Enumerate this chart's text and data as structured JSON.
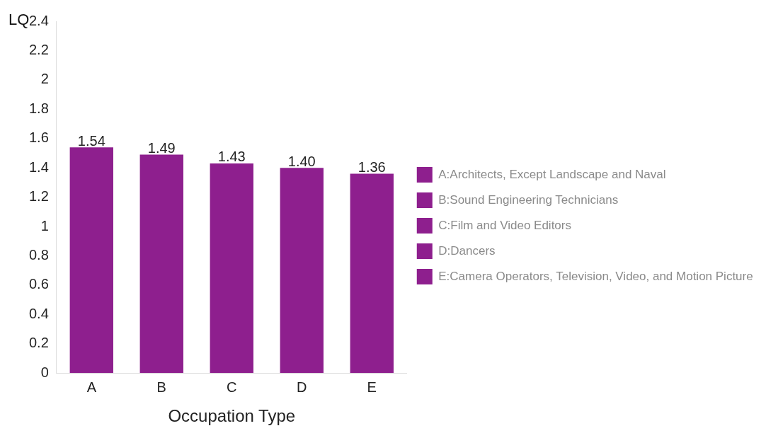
{
  "chart_data": {
    "type": "bar",
    "xlabel": "Occupation Type",
    "ylabel": "LQ",
    "categories": [
      "A",
      "B",
      "C",
      "D",
      "E"
    ],
    "series": [
      {
        "name": "A:Architects, Except Landscape and Naval",
        "color": "#8e1f8e",
        "values": [
          1.54,
          null,
          null,
          null,
          null
        ],
        "value_labels": [
          "1.54",
          null,
          null,
          null,
          null
        ]
      },
      {
        "name": "B:Sound Engineering Technicians",
        "color": "#8e1f8e",
        "values": [
          null,
          1.49,
          null,
          null,
          null
        ],
        "value_labels": [
          null,
          "1.49",
          null,
          null,
          null
        ]
      },
      {
        "name": "C:Film and Video Editors",
        "color": "#8e1f8e",
        "values": [
          null,
          null,
          1.43,
          null,
          null
        ],
        "value_labels": [
          null,
          null,
          "1.43",
          null,
          null
        ]
      },
      {
        "name": "D:Dancers",
        "color": "#8e1f8e",
        "values": [
          null,
          null,
          null,
          1.4,
          null
        ],
        "value_labels": [
          null,
          null,
          null,
          "1.40",
          null
        ]
      },
      {
        "name": "E:Camera Operators, Television, Video, and Motion Picture",
        "color": "#8e1f8e",
        "values": [
          null,
          null,
          null,
          null,
          1.36
        ],
        "value_labels": [
          null,
          null,
          null,
          null,
          "1.36"
        ]
      }
    ],
    "ylim": [
      0,
      2.4
    ],
    "yticks": [
      0,
      0.2,
      0.4,
      0.6,
      0.8,
      1,
      1.2,
      1.4,
      1.6,
      1.8,
      2,
      2.2,
      2.4
    ],
    "grid": false,
    "legend": "right"
  }
}
